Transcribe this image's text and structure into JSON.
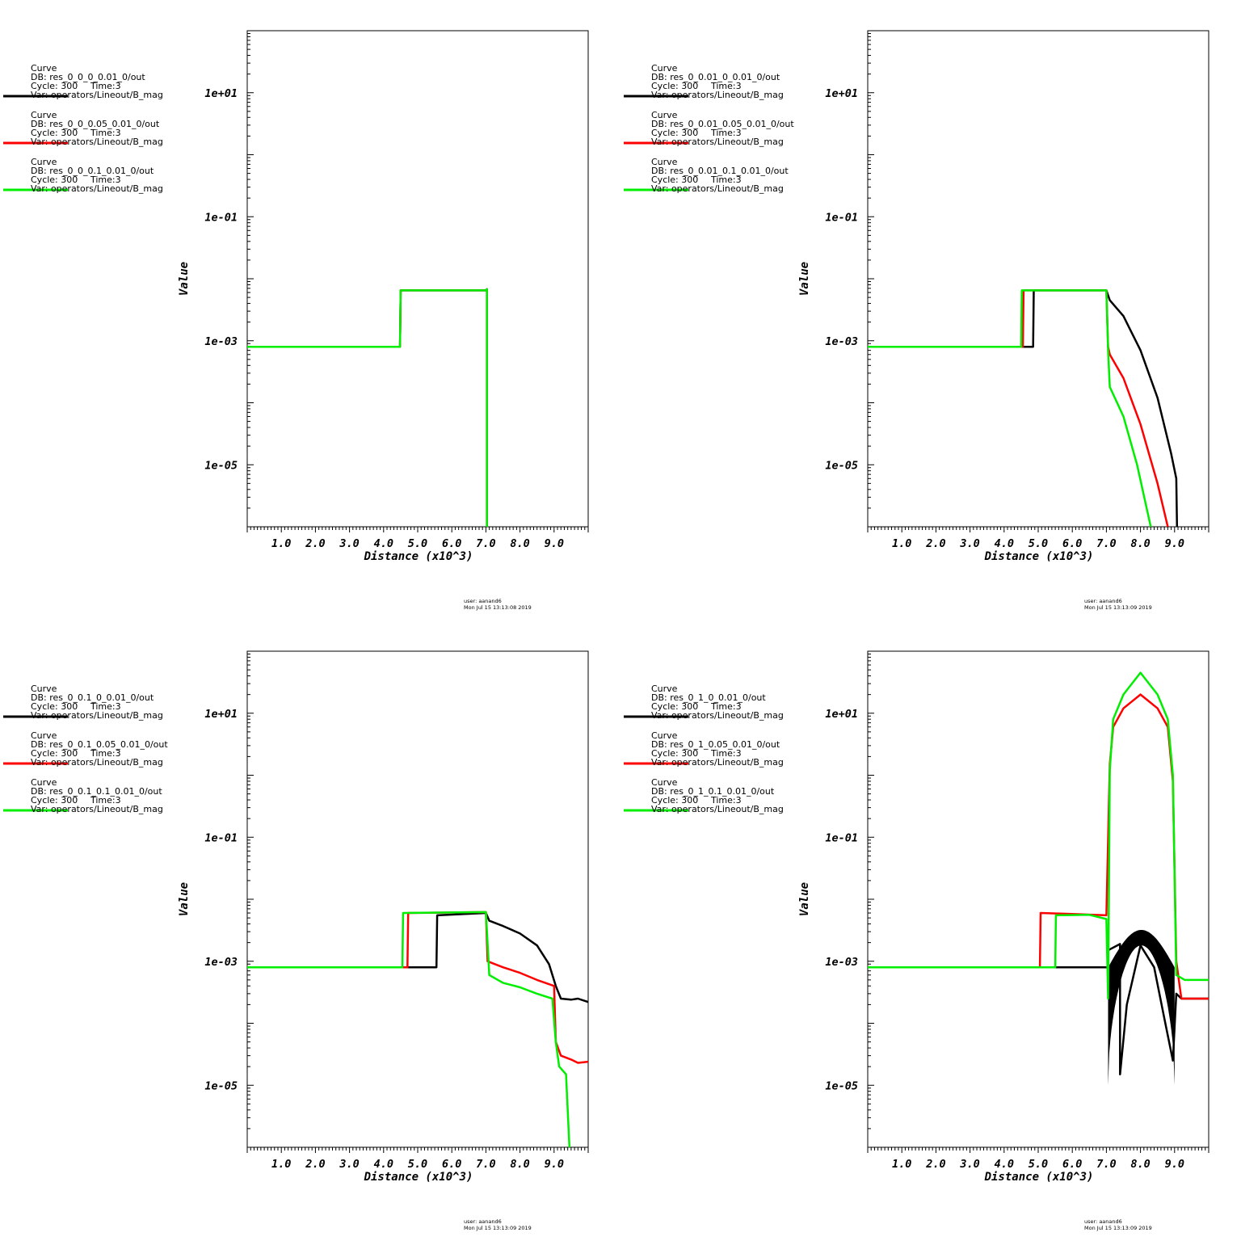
{
  "chart_data": [
    {
      "type": "line",
      "xlabel": "Distance (x10^3)",
      "ylabel": "Value",
      "yscale": "log",
      "xlim": [
        0,
        10
      ],
      "ylim": [
        1e-06,
        100
      ],
      "xticks": [
        "1.0",
        "2.0",
        "3.0",
        "4.0",
        "5.0",
        "6.0",
        "7.0",
        "8.0",
        "9.0"
      ],
      "yticks": [
        "1e+01",
        "1e-01",
        "1e-03",
        "1e-05"
      ],
      "user": "user: aanand6",
      "date": "Mon Jul 15 13:13:08 2019",
      "series": [
        {
          "legend": {
            "title": "Curve",
            "db": "DB: res_0_0_0_0.01_0/out",
            "cycle": "Cycle: 300",
            "time": "Time:3",
            "var": "Var: operators/Lineout/B_mag"
          },
          "color": "#000000",
          "points": [
            [
              0,
              0.0008
            ],
            [
              4.48,
              0.0008
            ],
            [
              4.5,
              0.0065
            ],
            [
              7.0,
              0.0065
            ],
            [
              7.03,
              0.0068
            ],
            [
              7.03,
              1e-06
            ]
          ]
        },
        {
          "legend": {
            "title": "Curve",
            "db": "DB: res_0_0_0.05_0.01_0/out",
            "cycle": "Cycle: 300",
            "time": "Time:3",
            "var": "Var: operators/Lineout/B_mag"
          },
          "color": "#ff0000",
          "points": [
            [
              0,
              0.0008
            ],
            [
              4.48,
              0.0008
            ],
            [
              4.5,
              0.0065
            ],
            [
              7.0,
              0.0065
            ],
            [
              7.03,
              0.0068
            ],
            [
              7.03,
              1e-06
            ]
          ]
        },
        {
          "legend": {
            "title": "Curve",
            "db": "DB: res_0_0_0.1_0.01_0/out",
            "cycle": "Cycle: 300",
            "time": "Time:3",
            "var": "Var: operators/Lineout/B_mag"
          },
          "color": "#00ee00",
          "points": [
            [
              0,
              0.0008
            ],
            [
              4.48,
              0.0008
            ],
            [
              4.5,
              0.0065
            ],
            [
              7.0,
              0.0065
            ],
            [
              7.03,
              0.0068
            ],
            [
              7.03,
              1e-06
            ]
          ]
        }
      ]
    },
    {
      "type": "line",
      "xlabel": "Distance (x10^3)",
      "ylabel": "Value",
      "yscale": "log",
      "xlim": [
        0,
        10
      ],
      "ylim": [
        1e-06,
        100
      ],
      "xticks": [
        "1.0",
        "2.0",
        "3.0",
        "4.0",
        "5.0",
        "6.0",
        "7.0",
        "8.0",
        "9.0"
      ],
      "yticks": [
        "1e+01",
        "1e-01",
        "1e-03",
        "1e-05"
      ],
      "user": "user: aanand6",
      "date": "Mon Jul 15 13:13:09 2019",
      "series": [
        {
          "legend": {
            "title": "Curve",
            "db": "DB: res_0_0.01_0_0.01_0/out",
            "cycle": "Cycle: 300",
            "time": "Time:3",
            "var": "Var: operators/Lineout/B_mag"
          },
          "color": "#000000",
          "points": [
            [
              0,
              0.0008
            ],
            [
              4.85,
              0.0008
            ],
            [
              4.87,
              0.0065
            ],
            [
              7.0,
              0.0065
            ],
            [
              7.1,
              0.0045
            ],
            [
              7.5,
              0.0025
            ],
            [
              8.0,
              0.0007
            ],
            [
              8.5,
              0.00012
            ],
            [
              8.9,
              1.5e-05
            ],
            [
              9.05,
              6e-06
            ],
            [
              9.07,
              1e-06
            ]
          ]
        },
        {
          "legend": {
            "title": "Curve",
            "db": "DB: res_0_0.01_0.05_0.01_0/out",
            "cycle": "Cycle: 300",
            "time": "Time:3",
            "var": "Var: operators/Lineout/B_mag"
          },
          "color": "#ff0000",
          "points": [
            [
              0,
              0.0008
            ],
            [
              4.55,
              0.0008
            ],
            [
              4.57,
              0.0065
            ],
            [
              7.0,
              0.0065
            ],
            [
              7.05,
              0.0008
            ],
            [
              7.1,
              0.0006
            ],
            [
              7.5,
              0.00025
            ],
            [
              8.0,
              4.5e-05
            ],
            [
              8.5,
              5e-06
            ],
            [
              8.8,
              1e-06
            ]
          ]
        },
        {
          "legend": {
            "title": "Curve",
            "db": "DB: res_0_0.01_0.1_0.01_0/out",
            "cycle": "Cycle: 300",
            "time": "Time:3",
            "var": "Var: operators/Lineout/B_mag"
          },
          "color": "#00ee00",
          "points": [
            [
              0,
              0.0008
            ],
            [
              4.5,
              0.0008
            ],
            [
              4.52,
              0.0065
            ],
            [
              7.0,
              0.0065
            ],
            [
              7.05,
              0.0007
            ],
            [
              7.1,
              0.00018
            ],
            [
              7.5,
              6e-05
            ],
            [
              7.9,
              1e-05
            ],
            [
              8.3,
              1e-06
            ]
          ]
        }
      ]
    },
    {
      "type": "line",
      "xlabel": "Distance (x10^3)",
      "ylabel": "Value",
      "yscale": "log",
      "xlim": [
        0,
        10
      ],
      "ylim": [
        1e-06,
        100
      ],
      "xticks": [
        "1.0",
        "2.0",
        "3.0",
        "4.0",
        "5.0",
        "6.0",
        "7.0",
        "8.0",
        "9.0"
      ],
      "yticks": [
        "1e+01",
        "1e-01",
        "1e-03",
        "1e-05"
      ],
      "user": "user: aanand6",
      "date": "Mon Jul 15 13:13:09 2019",
      "series": [
        {
          "legend": {
            "title": "Curve",
            "db": "DB: res_0_0.1_0_0.01_0/out",
            "cycle": "Cycle: 300",
            "time": "Time:3",
            "var": "Var: operators/Lineout/B_mag"
          },
          "color": "#000000",
          "points": [
            [
              0,
              0.0008
            ],
            [
              5.55,
              0.0008
            ],
            [
              5.57,
              0.0055
            ],
            [
              7.0,
              0.006
            ],
            [
              7.1,
              0.0045
            ],
            [
              7.5,
              0.0037
            ],
            [
              8.0,
              0.0028
            ],
            [
              8.5,
              0.0018
            ],
            [
              8.85,
              0.0009
            ],
            [
              9.05,
              0.0004
            ],
            [
              9.2,
              0.00025
            ],
            [
              9.5,
              0.00024
            ],
            [
              9.7,
              0.00025
            ],
            [
              10.0,
              0.00022
            ]
          ]
        },
        {
          "legend": {
            "title": "Curve",
            "db": "DB: res_0_0.1_0.05_0.01_0/out",
            "cycle": "Cycle: 300",
            "time": "Time:3",
            "var": "Var: operators/Lineout/B_mag"
          },
          "color": "#ff0000",
          "points": [
            [
              0,
              0.0008
            ],
            [
              4.7,
              0.0008
            ],
            [
              4.72,
              0.006
            ],
            [
              7.0,
              0.0062
            ],
            [
              7.05,
              0.001
            ],
            [
              7.5,
              0.0008
            ],
            [
              8.0,
              0.00065
            ],
            [
              8.5,
              0.0005
            ],
            [
              9.0,
              0.0004
            ],
            [
              9.05,
              5e-05
            ],
            [
              9.2,
              3e-05
            ],
            [
              9.5,
              2.6e-05
            ],
            [
              9.7,
              2.3e-05
            ],
            [
              10.0,
              2.4e-05
            ]
          ]
        },
        {
          "legend": {
            "title": "Curve",
            "db": "DB: res_0_0.1_0.1_0.01_0/out",
            "cycle": "Cycle: 300",
            "time": "Time:3",
            "var": "Var: operators/Lineout/B_mag"
          },
          "color": "#00ee00",
          "points": [
            [
              0,
              0.0008
            ],
            [
              4.55,
              0.0008
            ],
            [
              4.57,
              0.006
            ],
            [
              7.0,
              0.0062
            ],
            [
              7.1,
              0.0006
            ],
            [
              7.5,
              0.00045
            ],
            [
              8.0,
              0.00038
            ],
            [
              8.5,
              0.0003
            ],
            [
              8.95,
              0.00025
            ],
            [
              9.05,
              5e-05
            ],
            [
              9.15,
              2e-05
            ],
            [
              9.35,
              1.5e-05
            ],
            [
              9.45,
              1e-06
            ]
          ]
        }
      ]
    },
    {
      "type": "line",
      "xlabel": "Distance (x10^3)",
      "ylabel": "Value",
      "yscale": "log",
      "xlim": [
        0,
        10
      ],
      "ylim": [
        1e-06,
        100
      ],
      "xticks": [
        "1.0",
        "2.0",
        "3.0",
        "4.0",
        "5.0",
        "6.0",
        "7.0",
        "8.0",
        "9.0"
      ],
      "yticks": [
        "1e+01",
        "1e-01",
        "1e-03",
        "1e-05"
      ],
      "user": "user: aanand6",
      "date": "Mon Jul 15 13:13:09 2019",
      "series": [
        {
          "legend": {
            "title": "Curve",
            "db": "DB: res_0_1_0_0.01_0/out",
            "cycle": "Cycle: 300",
            "time": "Time:3",
            "var": "Var: operators/Lineout/B_mag"
          },
          "color": "#000000",
          "band": {
            "x": [
              7.05,
              9.0
            ],
            "upper_peak": 0.0032,
            "lower_peak": 0.0018,
            "upper_edge": 0.0008,
            "lower_edge": 1e-05
          },
          "points": [
            [
              0,
              0.0008
            ],
            [
              7.05,
              0.0008
            ],
            [
              7.05,
              0.0015
            ],
            [
              7.4,
              0.0019
            ],
            [
              7.4,
              1.5e-05
            ],
            [
              7.6,
              0.0002
            ],
            [
              8.0,
              0.0018
            ],
            [
              8.4,
              0.0008
            ],
            [
              8.7,
              0.00012
            ],
            [
              8.95,
              2.5e-05
            ],
            [
              9.05,
              0.0003
            ],
            [
              9.2,
              0.00025
            ],
            [
              10.0,
              0.00025
            ]
          ]
        },
        {
          "legend": {
            "title": "Curve",
            "db": "DB: res_0_1_0.05_0.01_0/out",
            "cycle": "Cycle: 300",
            "time": "Time:3",
            "var": "Var: operators/Lineout/B_mag"
          },
          "color": "#ff0000",
          "points": [
            [
              0,
              0.0008
            ],
            [
              5.05,
              0.0008
            ],
            [
              5.07,
              0.006
            ],
            [
              6.0,
              0.0058
            ],
            [
              7.0,
              0.0055
            ],
            [
              7.1,
              1.5
            ],
            [
              7.2,
              6
            ],
            [
              7.5,
              12
            ],
            [
              8.0,
              20
            ],
            [
              8.5,
              12
            ],
            [
              8.8,
              6
            ],
            [
              8.95,
              0.8
            ],
            [
              9.05,
              0.001
            ],
            [
              9.2,
              0.00025
            ],
            [
              10.0,
              0.00025
            ]
          ]
        },
        {
          "legend": {
            "title": "Curve",
            "db": "DB: res_0_1_0.1_0.01_0/out",
            "cycle": "Cycle: 300",
            "time": "Time:3",
            "var": "Var: operators/Lineout/B_mag"
          },
          "color": "#00ee00",
          "points": [
            [
              0,
              0.0008
            ],
            [
              5.5,
              0.0008
            ],
            [
              5.52,
              0.0055
            ],
            [
              6.5,
              0.0056
            ],
            [
              7.0,
              0.0048
            ],
            [
              7.05,
              0.00025
            ],
            [
              7.1,
              1.2
            ],
            [
              7.2,
              8
            ],
            [
              7.5,
              20
            ],
            [
              8.0,
              45
            ],
            [
              8.5,
              20
            ],
            [
              8.8,
              8
            ],
            [
              8.95,
              1
            ],
            [
              9.05,
              0.0006
            ],
            [
              9.3,
              0.0005
            ],
            [
              10.0,
              0.0005
            ]
          ]
        }
      ]
    }
  ]
}
